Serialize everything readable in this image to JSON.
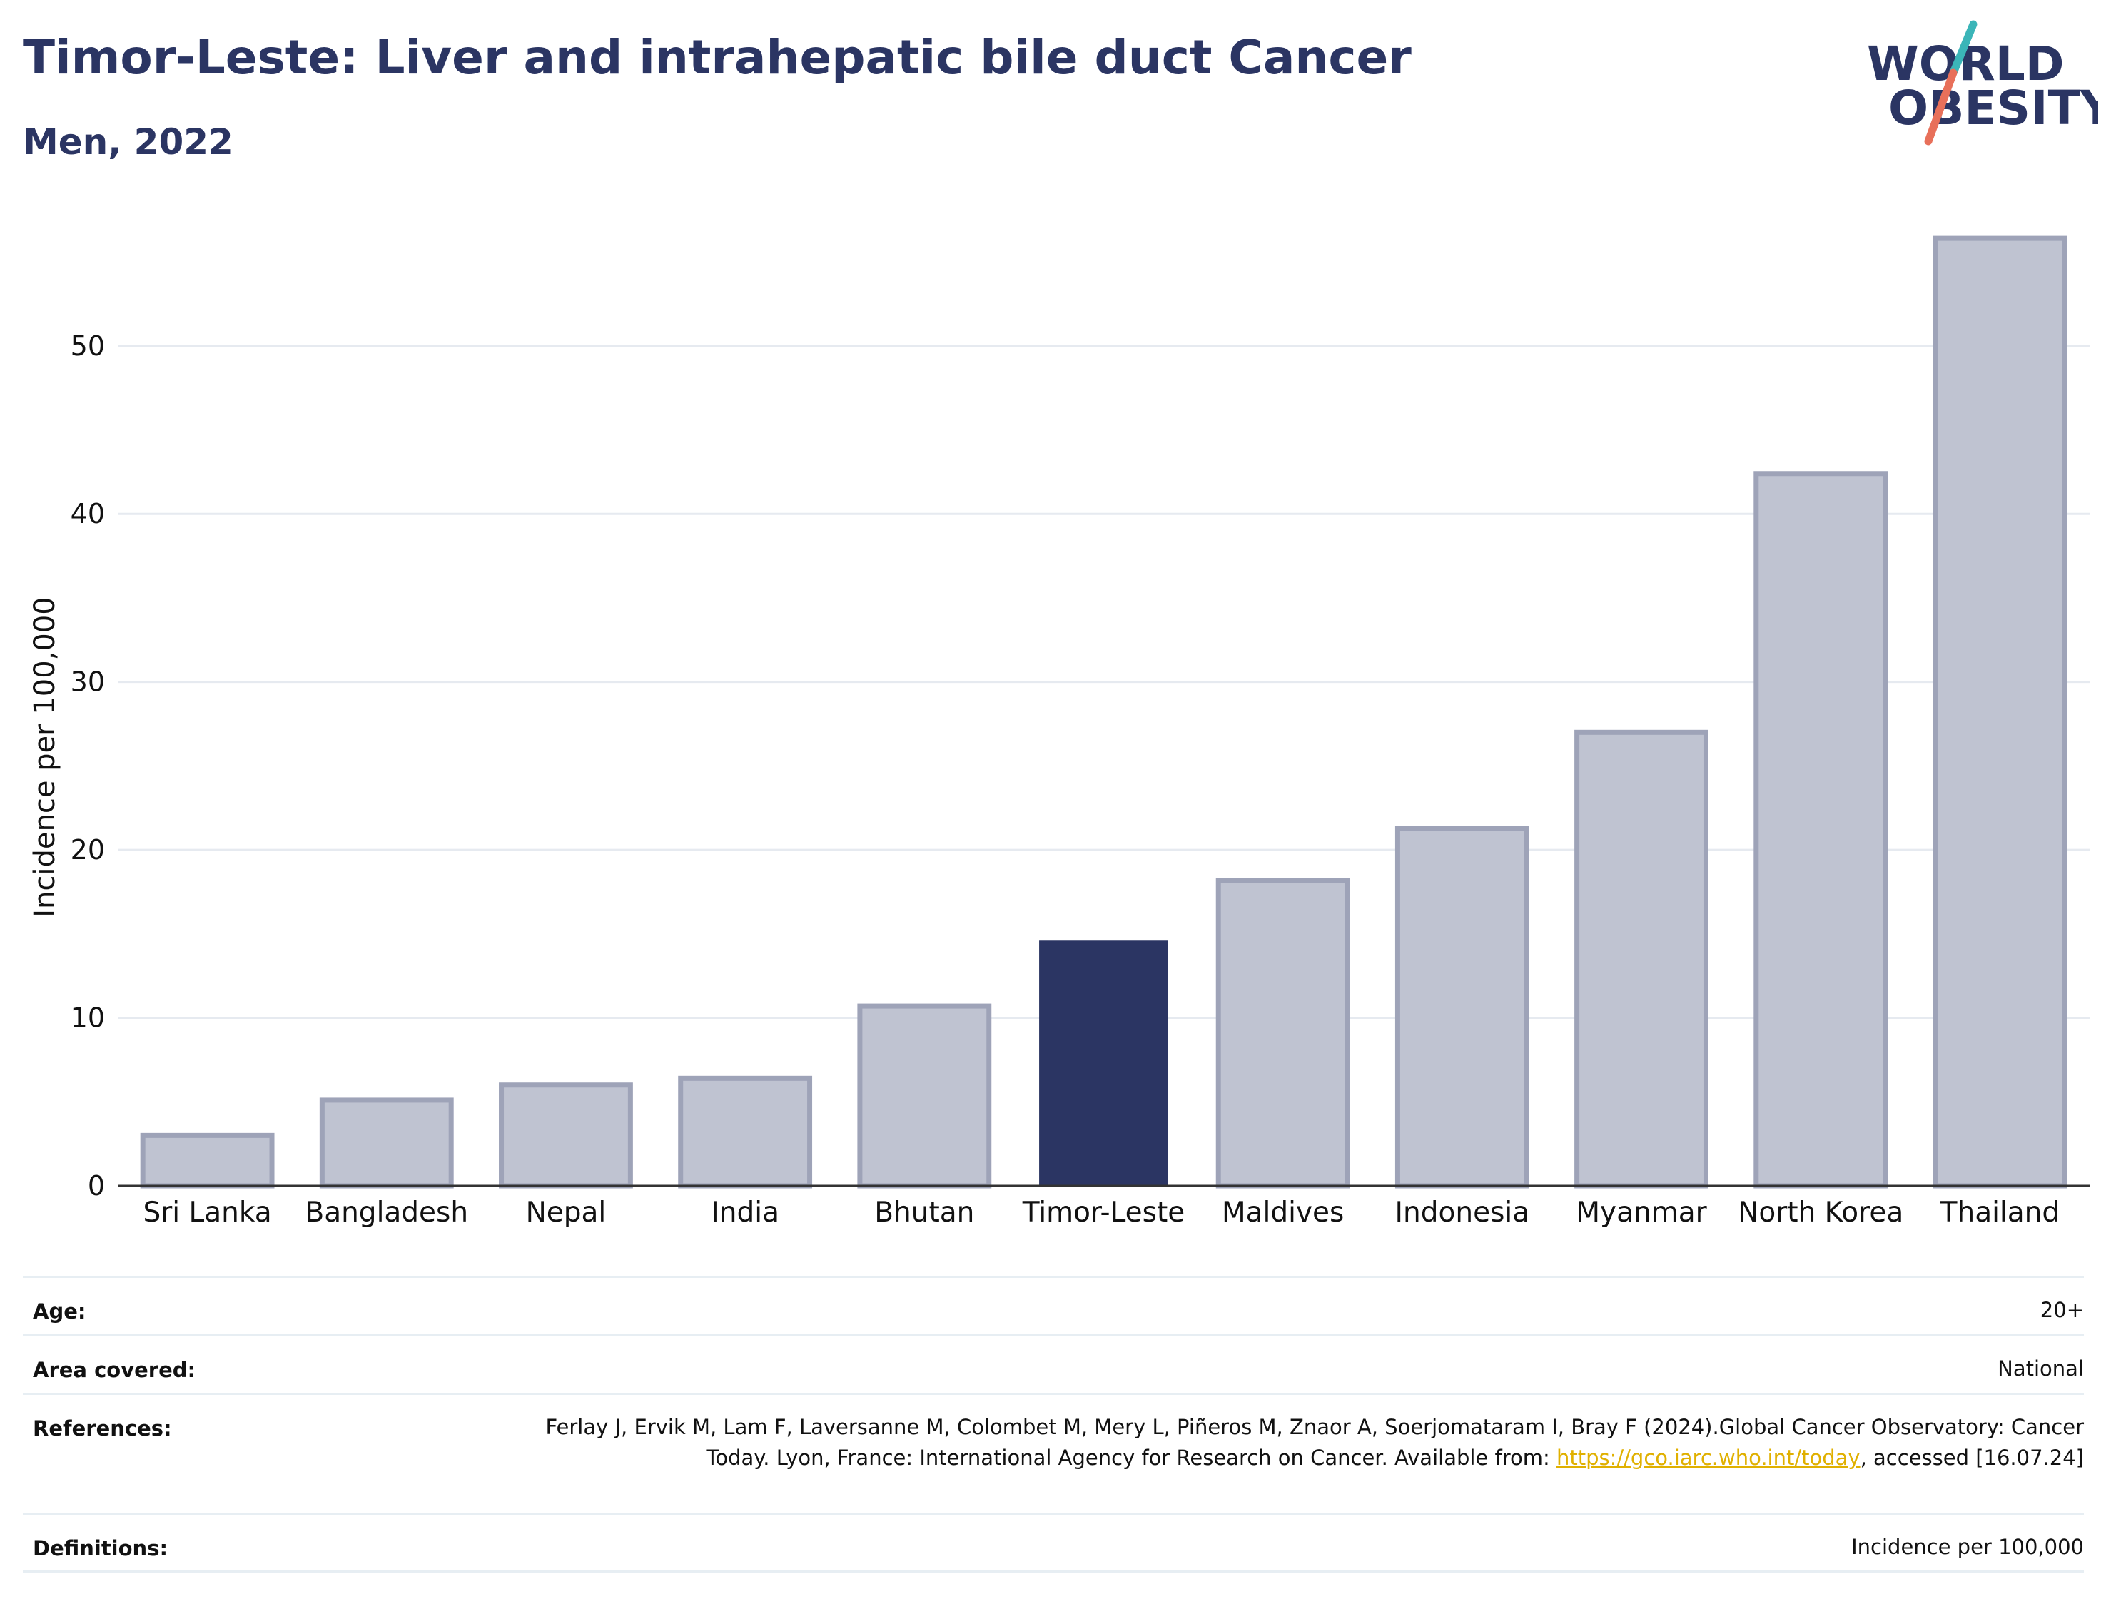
{
  "header": {
    "title": "Timor-Leste: Liver and intrahepatic bile duct Cancer",
    "subtitle": "Men, 2022"
  },
  "logo": {
    "line1": "WORLD",
    "line2": "OBESITY",
    "colors": {
      "text": "#2b3563",
      "slash_top": "#3bb5b8",
      "slash_bottom": "#e8705a"
    }
  },
  "chart_data": {
    "type": "bar",
    "categories": [
      "Sri Lanka",
      "Bangladesh",
      "Nepal",
      "India",
      "Bhutan",
      "Timor-Leste",
      "Maldives",
      "Indonesia",
      "Myanmar",
      "North Korea",
      "Thailand"
    ],
    "values": [
      3.0,
      5.1,
      6.0,
      6.4,
      10.7,
      14.6,
      18.2,
      21.3,
      27.0,
      42.4,
      56.4
    ],
    "highlight": "Timor-Leste",
    "xlabel": "",
    "ylabel": "Incidence per 100,000",
    "ylim": [
      0,
      57
    ],
    "yticks": [
      0,
      10,
      20,
      30,
      40,
      50
    ],
    "grid": true,
    "colors": {
      "bar": "#bfc3d1",
      "bar_border": "#9ea3b8",
      "highlight": "#2b3563",
      "grid": "#e6eaf0",
      "axis": "#333333"
    }
  },
  "meta": {
    "age": {
      "label": "Age:",
      "value": "20+"
    },
    "area": {
      "label": "Area covered:",
      "value": "National"
    },
    "references": {
      "label": "References:",
      "text_before": "Ferlay J, Ervik M, Lam F, Laversanne M, Colombet M, Mery L, Piñeros M, Znaor A, Soerjomataram I, Bray F (2024).Global Cancer Observatory: Cancer Today. Lyon, France: International Agency for Research on Cancer. Available from: ",
      "link": "https://gco.iarc.who.int/today",
      "text_after": ", accessed [16.07.24]"
    },
    "definitions": {
      "label": "Definitions:",
      "value": "Incidence per 100,000"
    }
  }
}
